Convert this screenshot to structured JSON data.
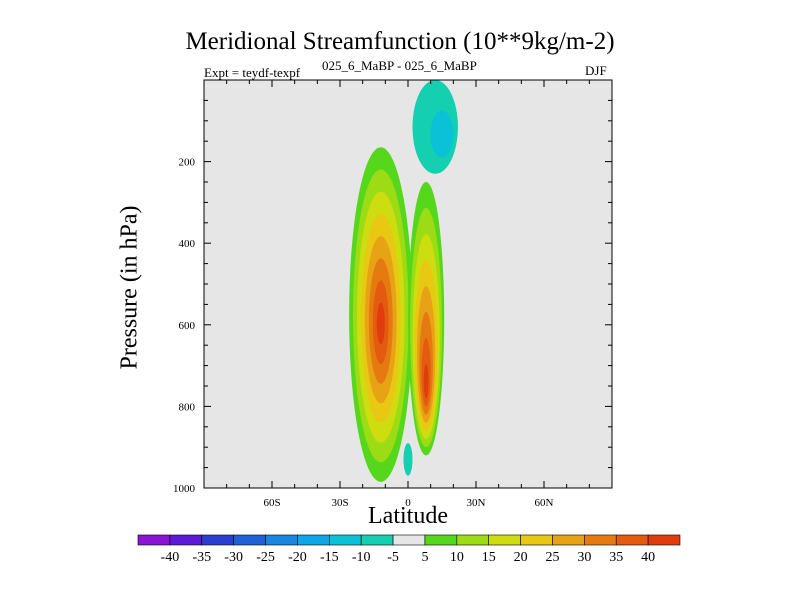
{
  "title": "Meridional Streamfunction (10**9kg/m-2)",
  "subtitle": "025_6_MaBP - 025_6_MaBP",
  "expt_label": "Expt = teydf-texpf",
  "season": "DJF",
  "chart_data": {
    "type": "filled-contour",
    "title": "Meridional Streamfunction (10**9kg/m-2)",
    "xlabel": "Latitude",
    "ylabel": "Pressure (in hPa)",
    "xlim": [
      -90,
      90
    ],
    "ylim": [
      1000,
      0
    ],
    "x_ticks": [
      {
        "value": -60,
        "label": "60S"
      },
      {
        "value": -30,
        "label": "30S"
      },
      {
        "value": 0,
        "label": "0"
      },
      {
        "value": 30,
        "label": "30N"
      },
      {
        "value": 60,
        "label": "60N"
      }
    ],
    "y_ticks": [
      {
        "value": 200,
        "label": "200"
      },
      {
        "value": 400,
        "label": "400"
      },
      {
        "value": 600,
        "label": "600"
      },
      {
        "value": 800,
        "label": "800"
      },
      {
        "value": 1000,
        "label": "1000"
      }
    ],
    "background_color": "#e6e6e6",
    "contour_levels": [
      -40,
      -35,
      -30,
      -25,
      -20,
      -15,
      -10,
      -5,
      5,
      10,
      15,
      20,
      25,
      30,
      35,
      40
    ],
    "colorbar_colors": [
      "#8a13d4",
      "#5c19d6",
      "#2a3fcf",
      "#1f62d6",
      "#1a86e0",
      "#0fa6e8",
      "#09c2d8",
      "#14cfb0",
      "#e6e6e6",
      "#55d81c",
      "#9ddc14",
      "#cddd10",
      "#e8c813",
      "#e8a215",
      "#e57a10",
      "#e45a10",
      "#e03c0c"
    ],
    "features": [
      {
        "name": "southern-positive-cell",
        "lat_center": -12,
        "lat_halfwidth": 14,
        "p_top": 165,
        "p_bottom": 985,
        "peak_value": 40,
        "peak_lat": -12,
        "peak_p": 600
      },
      {
        "name": "equatorial-positive-cell",
        "lat_center": 8,
        "lat_halfwidth": 8,
        "p_top": 250,
        "p_bottom": 920,
        "peak_value": 40,
        "peak_lat": 8,
        "peak_p": 760
      },
      {
        "name": "upper-negative-cell",
        "lat_center": 12,
        "lat_halfwidth": 10,
        "p_top": 0,
        "p_bottom": 230,
        "peak_value": -10,
        "peak_lat": 18,
        "peak_p": 150
      },
      {
        "name": "lower-negative-cell",
        "lat_center": 0,
        "lat_halfwidth": 2,
        "p_top": 890,
        "p_bottom": 970,
        "peak_value": -5,
        "peak_lat": 0,
        "peak_p": 930
      }
    ]
  }
}
